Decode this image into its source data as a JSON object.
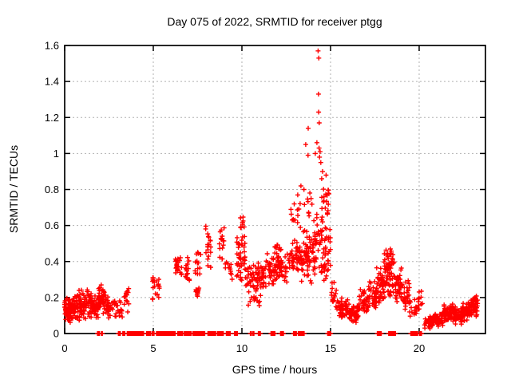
{
  "title": "Day 075 of 2022, SRMTID for receiver ptgg",
  "colors": {
    "marker": "#ff0000",
    "grid": "#b0b0b0",
    "axis": "#000000",
    "background": "#ffffff",
    "text": "#000000"
  },
  "chart_data": {
    "type": "scatter",
    "title": "Day 075 of 2022, SRMTID for receiver ptgg",
    "xlabel": "GPS time / hours",
    "ylabel": "SRMTID / TECUs",
    "xlim": [
      0,
      23.74
    ],
    "ylim": [
      0,
      1.6
    ],
    "grid": true,
    "marker": "plus",
    "marker_color": "#ff0000",
    "xticks": [
      {
        "v": 0,
        "label": "0"
      },
      {
        "v": 5,
        "label": "5"
      },
      {
        "v": 10,
        "label": "10"
      },
      {
        "v": 15,
        "label": "15"
      },
      {
        "v": 20,
        "label": "20"
      }
    ],
    "yticks": [
      {
        "v": 0,
        "label": "0"
      },
      {
        "v": 0.2,
        "label": "0.2"
      },
      {
        "v": 0.4,
        "label": "0.4"
      },
      {
        "v": 0.6,
        "label": "0.6"
      },
      {
        "v": 0.8,
        "label": "0.8"
      },
      {
        "v": 1.0,
        "label": "1"
      },
      {
        "v": 1.2,
        "label": "1.2"
      },
      {
        "v": 1.4,
        "label": "1.4"
      },
      {
        "v": 1.6,
        "label": "1.6"
      }
    ],
    "outlier_points": [
      [
        13.6,
        1.05
      ],
      [
        13.73,
        0.99
      ],
      [
        13.74,
        1.14
      ],
      [
        14.14,
        1.0
      ],
      [
        14.23,
        1.06
      ],
      [
        14.3,
        1.57
      ],
      [
        14.34,
        1.53
      ],
      [
        14.32,
        1.33
      ],
      [
        14.33,
        1.23
      ],
      [
        14.36,
        1.17
      ],
      [
        14.35,
        1.03
      ],
      [
        14.38,
        0.98
      ],
      [
        14.41,
        1.01
      ],
      [
        14.45,
        0.95
      ],
      [
        14.5,
        0.86
      ],
      [
        14.55,
        0.9
      ],
      [
        14.75,
        0.88
      ],
      [
        13.33,
        0.82
      ],
      [
        13.5,
        0.8
      ],
      [
        13.15,
        0.77
      ],
      [
        13.9,
        0.75
      ],
      [
        12.95,
        0.72
      ]
    ],
    "clusters": [
      [
        0.0,
        0.35,
        0.05,
        0.2,
        45
      ],
      [
        0.0,
        0.35,
        0.1,
        0.16,
        20
      ],
      [
        0.35,
        0.75,
        0.07,
        0.22,
        45
      ],
      [
        0.75,
        1.1,
        0.06,
        0.25,
        45
      ],
      [
        1.1,
        1.5,
        0.08,
        0.26,
        45
      ],
      [
        1.5,
        1.9,
        0.07,
        0.22,
        45
      ],
      [
        1.9,
        2.3,
        0.1,
        0.28,
        45
      ],
      [
        2.3,
        2.58,
        0.08,
        0.22,
        25
      ],
      [
        2.58,
        3.25,
        0.08,
        0.2,
        26
      ],
      [
        3.35,
        3.62,
        0.1,
        0.27,
        14
      ],
      [
        4.95,
        5.35,
        0.17,
        0.33,
        20
      ],
      [
        6.25,
        6.62,
        0.27,
        0.46,
        22
      ],
      [
        6.8,
        7.05,
        0.25,
        0.43,
        16
      ],
      [
        7.38,
        7.62,
        0.19,
        0.27,
        14
      ],
      [
        7.35,
        7.7,
        0.27,
        0.48,
        14
      ],
      [
        7.95,
        8.25,
        0.33,
        0.63,
        20
      ],
      [
        8.7,
        9.0,
        0.4,
        0.62,
        16
      ],
      [
        9.05,
        9.45,
        0.28,
        0.45,
        12
      ],
      [
        9.7,
        10.2,
        0.28,
        0.55,
        45
      ],
      [
        9.85,
        10.15,
        0.55,
        0.67,
        10
      ],
      [
        10.2,
        11.35,
        0.22,
        0.4,
        70
      ],
      [
        10.3,
        11.2,
        0.14,
        0.22,
        12
      ],
      [
        11.35,
        12.55,
        0.26,
        0.46,
        80
      ],
      [
        11.8,
        12.25,
        0.42,
        0.5,
        10
      ],
      [
        12.55,
        13.35,
        0.3,
        0.55,
        50
      ],
      [
        12.75,
        13.3,
        0.55,
        0.78,
        12
      ],
      [
        13.35,
        14.05,
        0.25,
        0.6,
        60
      ],
      [
        13.5,
        13.95,
        0.6,
        0.85,
        8
      ],
      [
        14.05,
        14.55,
        0.3,
        0.7,
        45
      ],
      [
        14.55,
        15.0,
        0.25,
        0.62,
        38
      ],
      [
        14.5,
        14.95,
        0.62,
        0.85,
        18
      ],
      [
        15.0,
        15.35,
        0.12,
        0.3,
        15
      ],
      [
        15.35,
        16.0,
        0.08,
        0.2,
        50
      ],
      [
        16.0,
        16.6,
        0.05,
        0.17,
        45
      ],
      [
        16.6,
        17.1,
        0.1,
        0.25,
        38
      ],
      [
        17.1,
        17.6,
        0.13,
        0.3,
        38
      ],
      [
        17.6,
        18.0,
        0.15,
        0.38,
        42
      ],
      [
        18.0,
        18.6,
        0.18,
        0.45,
        60
      ],
      [
        18.1,
        18.45,
        0.4,
        0.48,
        8
      ],
      [
        18.6,
        19.05,
        0.15,
        0.38,
        42
      ],
      [
        19.05,
        19.45,
        0.1,
        0.32,
        26
      ],
      [
        19.45,
        19.85,
        0.06,
        0.22,
        18
      ],
      [
        19.9,
        20.2,
        0.12,
        0.26,
        12
      ],
      [
        20.3,
        20.8,
        0.02,
        0.1,
        45
      ],
      [
        20.8,
        21.35,
        0.03,
        0.12,
        45
      ],
      [
        21.35,
        21.95,
        0.05,
        0.18,
        60
      ],
      [
        21.95,
        22.45,
        0.05,
        0.16,
        50
      ],
      [
        22.45,
        22.9,
        0.07,
        0.18,
        50
      ],
      [
        22.9,
        23.3,
        0.08,
        0.22,
        45
      ]
    ],
    "zero_segments": [
      [
        1.85,
        1.97
      ],
      [
        2.07,
        2.17
      ],
      [
        3.03,
        3.17
      ],
      [
        3.28,
        3.42
      ],
      [
        3.53,
        4.08
      ],
      [
        4.12,
        4.48
      ],
      [
        4.62,
        4.85
      ],
      [
        4.93,
        5.08
      ],
      [
        5.18,
        5.62
      ],
      [
        5.68,
        6.28
      ],
      [
        6.38,
        6.68
      ],
      [
        6.75,
        7.18
      ],
      [
        7.24,
        7.95
      ],
      [
        8.08,
        8.55
      ],
      [
        8.62,
        8.98
      ],
      [
        9.12,
        9.35
      ],
      [
        9.58,
        9.75
      ],
      [
        10.48,
        10.55
      ],
      [
        10.62,
        10.68
      ],
      [
        10.93,
        11.08
      ],
      [
        11.64,
        11.88
      ],
      [
        12.18,
        12.36
      ],
      [
        12.91,
        13.08
      ],
      [
        13.18,
        13.53
      ],
      [
        14.84,
        15.02
      ],
      [
        17.64,
        17.86
      ],
      [
        18.28,
        18.45
      ],
      [
        18.5,
        18.7
      ],
      [
        19.53,
        19.94
      ],
      [
        20.02,
        20.18
      ]
    ]
  }
}
